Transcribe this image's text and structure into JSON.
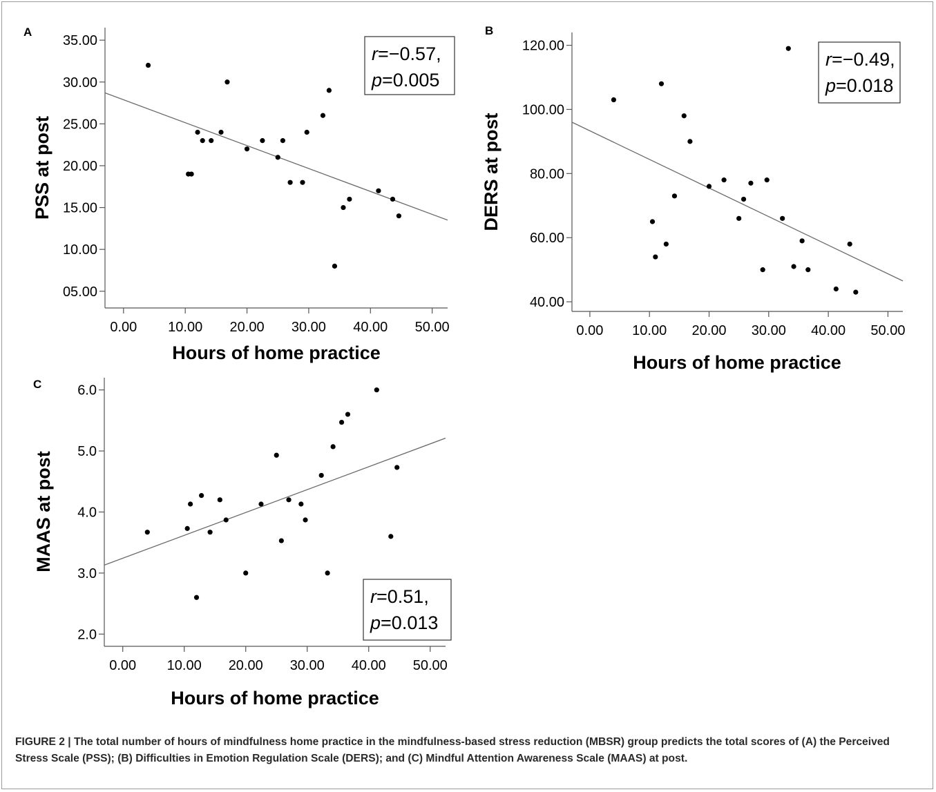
{
  "caption": {
    "label": "FIGURE 2 |",
    "text": "The total number of hours of mindfulness home practice in the mindfulness-based stress reduction (MBSR) group predicts the total scores of (A) the Perceived Stress Scale (PSS); (B) Difficulties in Emotion Regulation Scale (DERS); and (C) Mindful Attention Awareness Scale (MAAS) at post."
  },
  "chart_data": [
    {
      "panel": "A",
      "type": "scatter",
      "xlabel": "Hours of home practice",
      "ylabel": "PSS at post",
      "xlim": [
        -3,
        52.5
      ],
      "ylim": [
        3,
        36.5
      ],
      "xticks": [
        "0.00",
        "10.00",
        "20.00",
        "30.00",
        "40.00",
        "50.00"
      ],
      "xtick_values": [
        0,
        10,
        20,
        30,
        40,
        50
      ],
      "yticks": [
        "05.00",
        "10.00",
        "15.00",
        "20.00",
        "25.00",
        "30.00",
        "35.00"
      ],
      "ytick_values": [
        5,
        10,
        15,
        20,
        25,
        30,
        35
      ],
      "stats": [
        "r=−0.57,",
        "p=0.005"
      ],
      "stats_position": "top-right",
      "fit_line": {
        "x": [
          -3,
          52.5
        ],
        "y": [
          28.7,
          13.5
        ]
      },
      "points": [
        [
          4,
          32
        ],
        [
          10.5,
          19
        ],
        [
          11,
          19
        ],
        [
          12,
          24
        ],
        [
          12.8,
          23
        ],
        [
          14.2,
          23
        ],
        [
          15.8,
          24
        ],
        [
          16.8,
          30
        ],
        [
          20,
          22
        ],
        [
          22.5,
          23
        ],
        [
          25,
          21
        ],
        [
          25.8,
          23
        ],
        [
          27,
          18
        ],
        [
          29,
          18
        ],
        [
          29.7,
          24
        ],
        [
          32.3,
          26
        ],
        [
          33.3,
          29
        ],
        [
          34.2,
          8
        ],
        [
          35.6,
          15
        ],
        [
          36.6,
          16
        ],
        [
          41.3,
          17
        ],
        [
          43.6,
          16
        ],
        [
          44.6,
          14
        ]
      ]
    },
    {
      "panel": "B",
      "type": "scatter",
      "xlabel": "Hours of home practice",
      "ylabel": "DERS at post",
      "xlim": [
        -3,
        52.5
      ],
      "ylim": [
        37,
        124
      ],
      "xticks": [
        "0.00",
        "10.00",
        "20.00",
        "30.00",
        "40.00",
        "50.00"
      ],
      "xtick_values": [
        0,
        10,
        20,
        30,
        40,
        50
      ],
      "yticks": [
        "40.00",
        "60.00",
        "80.00",
        "100.00",
        "120.00"
      ],
      "ytick_values": [
        40,
        60,
        80,
        100,
        120
      ],
      "stats": [
        "r=−0.49,",
        "p=0.018"
      ],
      "stats_position": "top-right",
      "fit_line": {
        "x": [
          -3,
          52.5
        ],
        "y": [
          96,
          46.5
        ]
      },
      "points": [
        [
          4,
          103
        ],
        [
          10.5,
          65
        ],
        [
          11,
          54
        ],
        [
          12,
          108
        ],
        [
          12.8,
          58
        ],
        [
          14.2,
          73
        ],
        [
          15.8,
          98
        ],
        [
          16.8,
          90
        ],
        [
          20,
          76
        ],
        [
          22.5,
          78
        ],
        [
          25,
          66
        ],
        [
          25.8,
          72
        ],
        [
          27,
          77
        ],
        [
          29,
          50
        ],
        [
          29.7,
          78
        ],
        [
          32.3,
          66
        ],
        [
          33.3,
          119
        ],
        [
          34.2,
          51
        ],
        [
          35.6,
          59
        ],
        [
          36.6,
          50
        ],
        [
          41.3,
          44
        ],
        [
          43.6,
          58
        ],
        [
          44.6,
          43
        ]
      ]
    },
    {
      "panel": "C",
      "type": "scatter",
      "xlabel": "Hours of home practice",
      "ylabel": "MAAS at post",
      "xlim": [
        -3,
        52.5
      ],
      "ylim": [
        1.8,
        6.2
      ],
      "xticks": [
        "0.00",
        "10.00",
        "20.00",
        "30.00",
        "40.00",
        "50.00"
      ],
      "xtick_values": [
        0,
        10,
        20,
        30,
        40,
        50
      ],
      "yticks": [
        "2.0",
        "3.0",
        "4.0",
        "5.0",
        "6.0"
      ],
      "ytick_values": [
        2,
        3,
        4,
        5,
        6
      ],
      "stats": [
        "r=0.51,",
        "p=0.013"
      ],
      "stats_position": "bottom-right",
      "fit_line": {
        "x": [
          -3,
          52.5
        ],
        "y": [
          3.13,
          5.21
        ]
      },
      "points": [
        [
          4,
          3.67
        ],
        [
          10.5,
          3.73
        ],
        [
          11,
          4.13
        ],
        [
          12,
          2.6
        ],
        [
          12.8,
          4.27
        ],
        [
          14.2,
          3.67
        ],
        [
          15.8,
          4.2
        ],
        [
          16.8,
          3.87
        ],
        [
          20,
          3.0
        ],
        [
          22.5,
          4.13
        ],
        [
          25,
          4.93
        ],
        [
          25.8,
          3.53
        ],
        [
          27,
          4.2
        ],
        [
          29,
          4.13
        ],
        [
          29.7,
          3.87
        ],
        [
          32.3,
          4.6
        ],
        [
          33.3,
          3.0
        ],
        [
          34.2,
          5.07
        ],
        [
          35.6,
          5.47
        ],
        [
          36.6,
          5.6
        ],
        [
          41.3,
          6.0
        ],
        [
          43.6,
          3.6
        ],
        [
          44.6,
          4.73
        ]
      ]
    }
  ]
}
